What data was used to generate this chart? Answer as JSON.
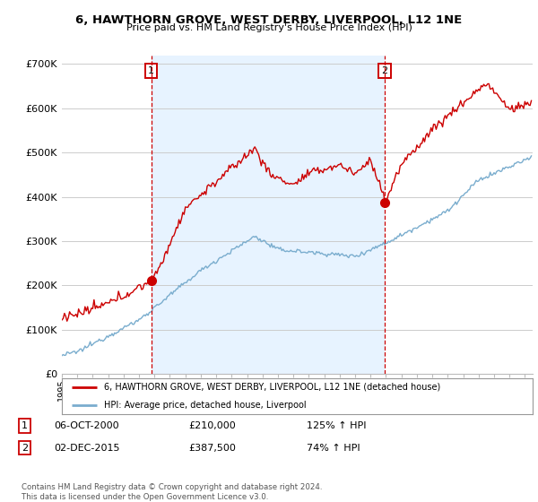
{
  "title": "6, HAWTHORN GROVE, WEST DERBY, LIVERPOOL, L12 1NE",
  "subtitle": "Price paid vs. HM Land Registry's House Price Index (HPI)",
  "sale1_date": "06-OCT-2000",
  "sale1_price": 210000,
  "sale1_hpi_pct": "125% ↑ HPI",
  "sale2_date": "02-DEC-2015",
  "sale2_price": 387500,
  "sale2_hpi_pct": "74% ↑ HPI",
  "legend_line1": "6, HAWTHORN GROVE, WEST DERBY, LIVERPOOL, L12 1NE (detached house)",
  "legend_line2": "HPI: Average price, detached house, Liverpool",
  "footnote": "Contains HM Land Registry data © Crown copyright and database right 2024.\nThis data is licensed under the Open Government Licence v3.0.",
  "line_color_red": "#cc0000",
  "line_color_blue": "#7aadce",
  "sale_marker_color": "#cc0000",
  "vline_color": "#cc0000",
  "box_color": "#cc0000",
  "bg_between_color": "#ddeeff",
  "ylim": [
    0,
    720000
  ],
  "yticks": [
    0,
    100000,
    200000,
    300000,
    400000,
    500000,
    600000,
    700000
  ],
  "ytick_labels": [
    "£0",
    "£100K",
    "£200K",
    "£300K",
    "£400K",
    "£500K",
    "£600K",
    "£700K"
  ],
  "sale1_year": 2000.79,
  "sale2_year": 2015.92,
  "sale1_price_val": 210000,
  "sale2_price_val": 387500
}
